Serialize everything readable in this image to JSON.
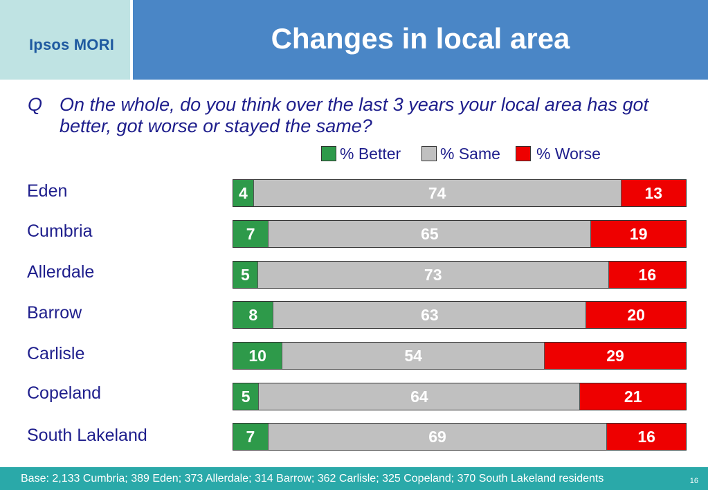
{
  "header": {
    "logo": "Ipsos MORI",
    "title": "Changes in local area"
  },
  "question": {
    "label": "Q",
    "text": "On the whole, do you think over the last 3 years your local area has got better, got worse or stayed the same?"
  },
  "legend": [
    {
      "label": "% Better",
      "color": "#2e9a4a"
    },
    {
      "label": "% Same",
      "color": "#c0c0c0"
    },
    {
      "label": "% Worse",
      "color": "#ee0000"
    }
  ],
  "chart_data": {
    "type": "bar",
    "orientation": "horizontal",
    "stacked": true,
    "title": "Changes in local area",
    "categories": [
      "Eden",
      "Cumbria",
      "Allerdale",
      "Barrow",
      "Carlisle",
      "Copeland",
      "South Lakeland"
    ],
    "series": [
      {
        "name": "% Better",
        "color": "#2e9a4a",
        "values": [
          4,
          7,
          5,
          8,
          10,
          5,
          7
        ]
      },
      {
        "name": "% Same",
        "color": "#c0c0c0",
        "values": [
          74,
          65,
          73,
          63,
          54,
          64,
          69
        ]
      },
      {
        "name": "% Worse",
        "color": "#ee0000",
        "values": [
          13,
          19,
          16,
          20,
          29,
          21,
          16
        ]
      }
    ],
    "legend_position": "top-right"
  },
  "footer": {
    "base": "Base:  2,133 Cumbria; 389 Eden; 373 Allerdale; 314 Barrow; 362 Carlisle; 325 Copeland; 370 South Lakeland residents",
    "page": "16"
  }
}
